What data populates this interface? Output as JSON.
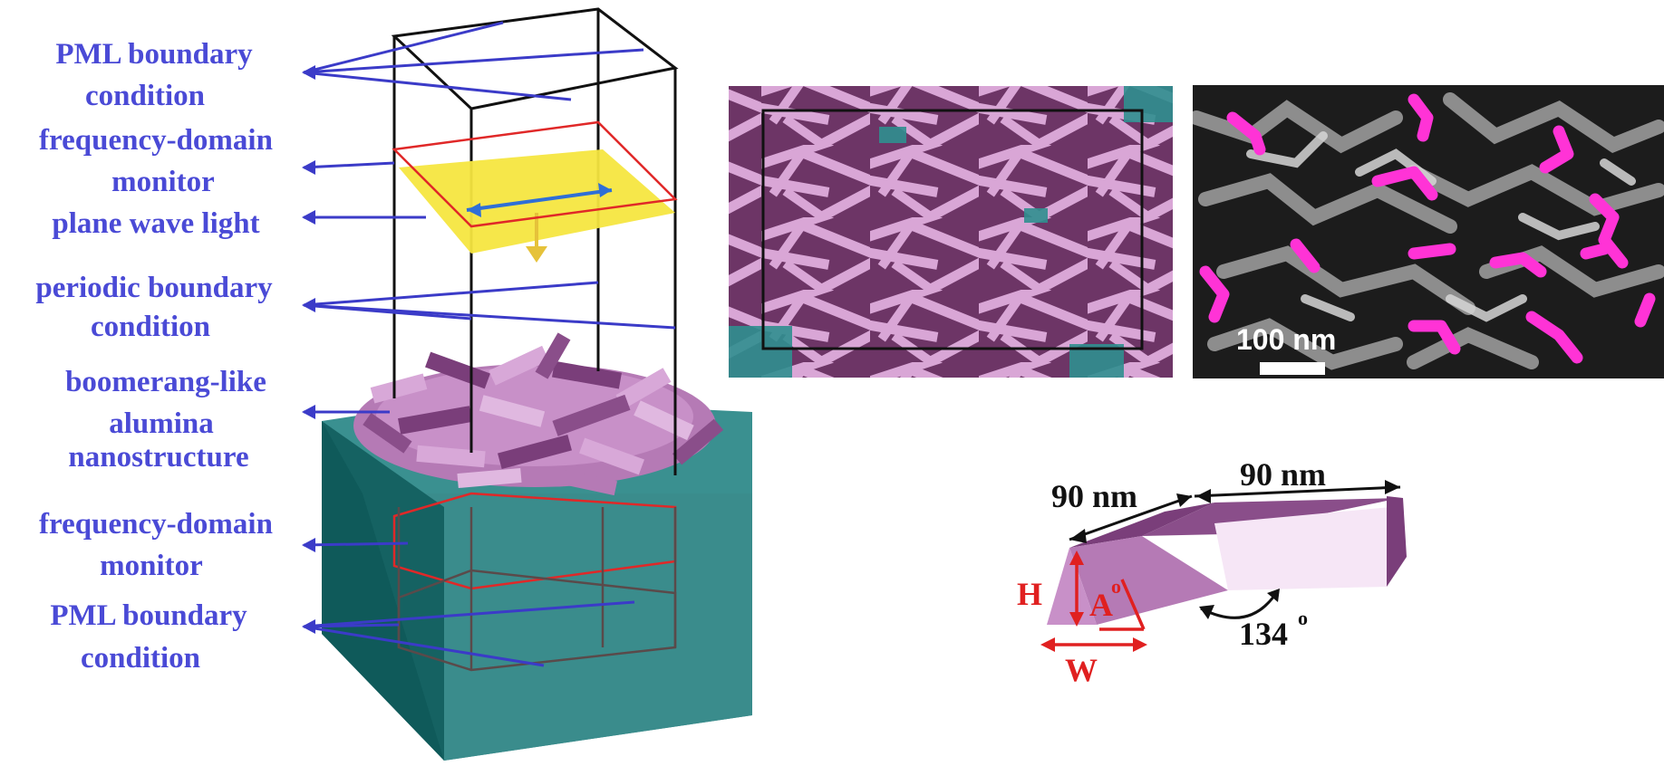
{
  "labels": {
    "pml_top_1": "PML  boundary",
    "pml_top_2": "condition",
    "fdm_top_1": "frequency-domain",
    "fdm_top_2": "monitor",
    "plane_wave": "plane wave light",
    "periodic_1": "periodic boundary",
    "periodic_2": "condition",
    "boomerang_1": "boomerang-like",
    "boomerang_2": "alumina",
    "boomerang_3": "nanostructure",
    "fdm_bot_1": "frequency-domain",
    "fdm_bot_2": "monitor",
    "pml_bot_1": "PML  boundary",
    "pml_bot_2": "condition"
  },
  "scale_bar": {
    "label": "100 nm"
  },
  "geometry_labels": {
    "length_left": "90 nm",
    "length_right": "90 nm",
    "height": "H",
    "angle": "A",
    "angle_degree": "o",
    "width": "W",
    "bend_angle": "134",
    "bend_degree": "o"
  },
  "colors": {
    "label_blue": "#4a4ad6",
    "substrate_teal": "#3a8c8c",
    "alumina_pink": "#c890c8",
    "alumina_dark": "#7a3e7a",
    "monitor_red": "#e02828",
    "source_yellow": "#f5e640",
    "sem_magenta": "#ff33d6",
    "dimension_red": "#e02020"
  }
}
